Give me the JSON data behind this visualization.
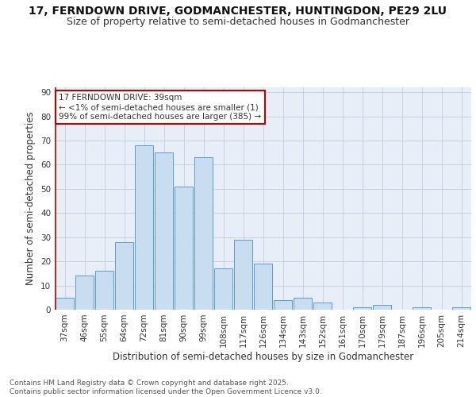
{
  "title": "17, FERNDOWN DRIVE, GODMANCHESTER, HUNTINGDON, PE29 2LU",
  "subtitle": "Size of property relative to semi-detached houses in Godmanchester",
  "xlabel": "Distribution of semi-detached houses by size in Godmanchester",
  "ylabel": "Number of semi-detached properties",
  "categories": [
    "37sqm",
    "46sqm",
    "55sqm",
    "64sqm",
    "72sqm",
    "81sqm",
    "90sqm",
    "99sqm",
    "108sqm",
    "117sqm",
    "126sqm",
    "134sqm",
    "143sqm",
    "152sqm",
    "161sqm",
    "170sqm",
    "179sqm",
    "187sqm",
    "196sqm",
    "205sqm",
    "214sqm"
  ],
  "values": [
    5,
    14,
    16,
    28,
    68,
    65,
    51,
    63,
    17,
    29,
    19,
    4,
    5,
    3,
    0,
    1,
    2,
    0,
    1,
    0,
    1
  ],
  "bar_color": "#c9ddf0",
  "bar_edge_color": "#5b9bd5",
  "highlight_color": "#c00000",
  "annotation_text": "17 FERNDOWN DRIVE: 39sqm\n← <1% of semi-detached houses are smaller (1)\n99% of semi-detached houses are larger (385) →",
  "annotation_box_color": "#c00000",
  "ylim": [
    0,
    92
  ],
  "yticks": [
    0,
    10,
    20,
    30,
    40,
    50,
    60,
    70,
    80,
    90
  ],
  "background_color": "#e8eef8",
  "footer_text": "Contains HM Land Registry data © Crown copyright and database right 2025.\nContains public sector information licensed under the Open Government Licence v3.0.",
  "title_fontsize": 10,
  "subtitle_fontsize": 9,
  "xlabel_fontsize": 8.5,
  "ylabel_fontsize": 8.5,
  "tick_fontsize": 7.5,
  "annotation_fontsize": 7.5,
  "footer_fontsize": 6.5
}
